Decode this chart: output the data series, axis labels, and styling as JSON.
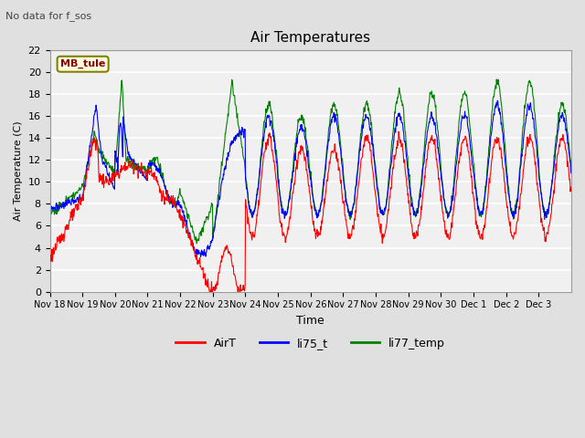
{
  "title": "Air Temperatures",
  "xlabel": "Time",
  "ylabel": "Air Temperature (C)",
  "annotation": "No data for f_sos",
  "legend_box_label": "MB_tule",
  "ylim": [
    0,
    22
  ],
  "yticks": [
    0,
    2,
    4,
    6,
    8,
    10,
    12,
    14,
    16,
    18,
    20,
    22
  ],
  "xtick_labels": [
    "Nov 18",
    "Nov 19",
    "Nov 20",
    "Nov 21",
    "Nov 22",
    "Nov 23",
    "Nov 24",
    "Nov 25",
    "Nov 26",
    "Nov 27",
    "Nov 28",
    "Nov 29",
    "Nov 30",
    "Dec 1",
    "Dec 2",
    "Dec 3"
  ],
  "series_colors": [
    "red",
    "blue",
    "green"
  ],
  "series_labels": [
    "AirT",
    "li75_t",
    "li77_temp"
  ],
  "background_color": "#e0e0e0",
  "plot_bg_color": "#f0f0f0",
  "grid_color": "#ffffff",
  "figsize": [
    6.4,
    4.8
  ],
  "dpi": 100
}
